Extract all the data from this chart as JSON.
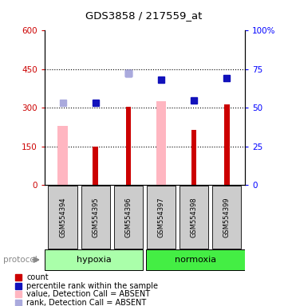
{
  "title": "GDS3858 / 217559_at",
  "samples": [
    "GSM554394",
    "GSM554395",
    "GSM554396",
    "GSM554397",
    "GSM554398",
    "GSM554399"
  ],
  "red_bars": [
    null,
    150,
    305,
    null,
    215,
    315
  ],
  "pink_bars": [
    230,
    null,
    null,
    325,
    null,
    null
  ],
  "blue_squares": [
    null,
    320,
    435,
    410,
    330,
    415
  ],
  "light_blue_squares": [
    320,
    null,
    435,
    null,
    null,
    null
  ],
  "ylim_left": [
    0,
    600
  ],
  "yticks_left": [
    0,
    150,
    300,
    450,
    600
  ],
  "ytick_labels_left": [
    "0",
    "150",
    "300",
    "450",
    "600"
  ],
  "ytick_labels_right": [
    "0",
    "25",
    "50",
    "75",
    "100%"
  ],
  "hlines": [
    150,
    300,
    450
  ],
  "plot_bg": "#ffffff",
  "red_color": "#CC0000",
  "pink_color": "#FFB6C1",
  "blue_color": "#1111BB",
  "light_blue_color": "#AAAADD",
  "hypoxia_color": "#AAFFAA",
  "normoxia_color": "#44EE44",
  "gray_box_color": "#CCCCCC",
  "figsize": [
    3.61,
    3.84
  ],
  "dpi": 100
}
